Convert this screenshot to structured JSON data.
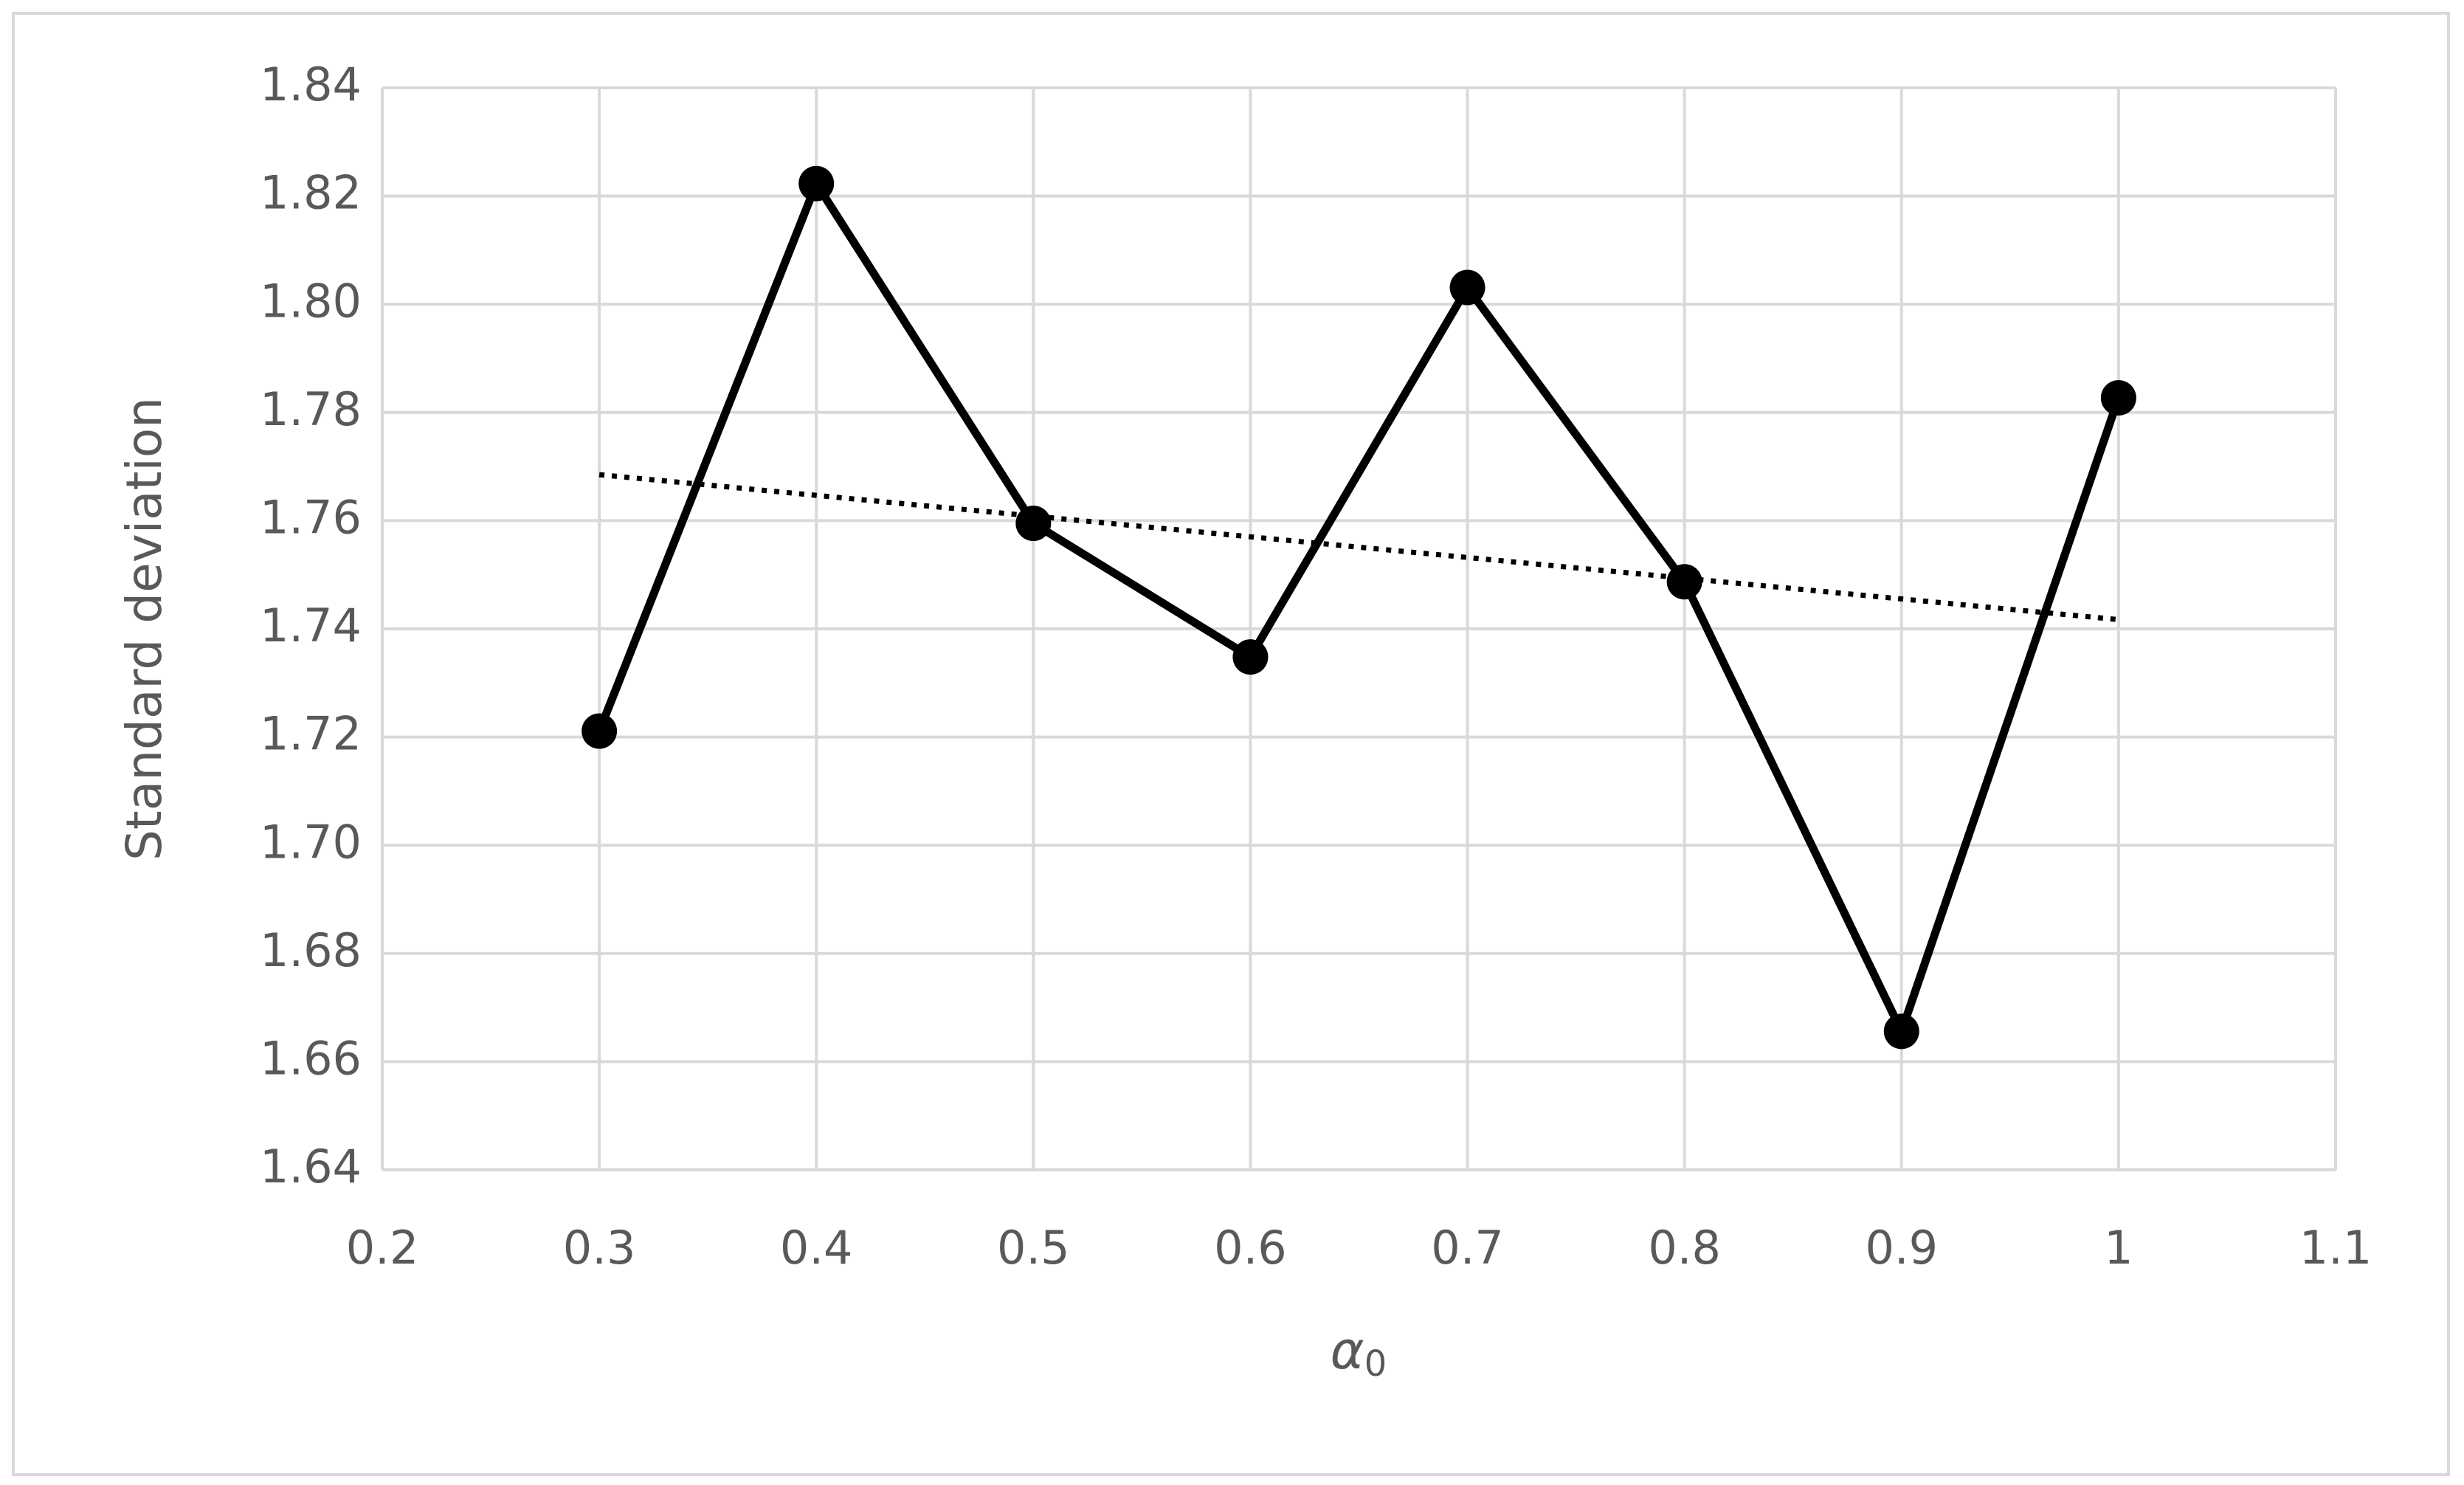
{
  "chart_data": {
    "type": "scatter",
    "ylabel": "Standard deviation",
    "xlabel": {
      "text": "α",
      "subscript": "0"
    },
    "x": [
      0.3,
      0.4,
      0.5,
      0.6,
      0.7,
      0.8,
      0.9,
      1
    ],
    "series": [
      {
        "color": "#000000",
        "values": [
          1.7211,
          1.8223,
          1.7595,
          1.7348,
          1.8031,
          1.7487,
          1.6656,
          1.7827
        ]
      }
    ],
    "trendline": {
      "style": "dotted",
      "color": "#000000",
      "x": [
        0.3,
        1
      ],
      "values": [
        1.7685,
        1.7417
      ]
    },
    "xlim": [
      0.2,
      1.1
    ],
    "xticks": [
      0.2,
      0.3,
      0.4,
      0.5,
      0.6,
      0.7,
      0.8,
      0.9,
      1,
      1.1
    ],
    "ylim": [
      1.64,
      1.84
    ],
    "yticks": [
      1.64,
      1.66,
      1.68,
      {
        "value": 1.7,
        "label": "1.70"
      },
      1.72,
      1.74,
      1.76,
      1.78,
      {
        "value": 1.8,
        "label": "1.80"
      },
      1.82,
      1.84
    ],
    "grid": true
  }
}
